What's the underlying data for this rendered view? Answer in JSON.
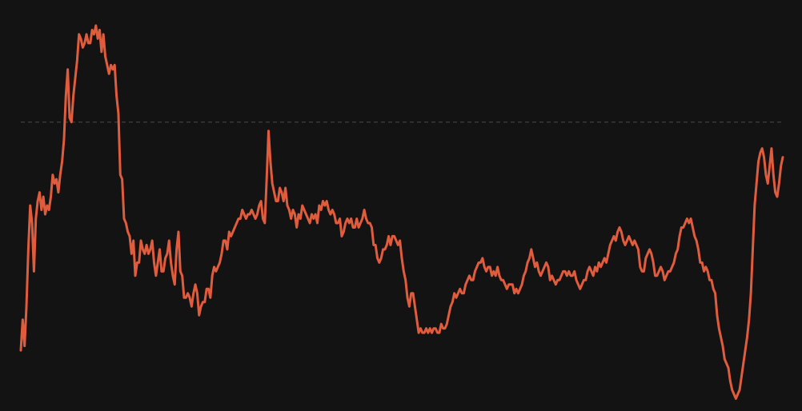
{
  "chart_data": {
    "type": "line",
    "title": "",
    "xlabel": "",
    "ylabel": "",
    "legend": "none",
    "grid": false,
    "colors": {
      "background": "#131313",
      "line": "#e05c3c",
      "reference_line": "#4a4a4a"
    },
    "reference_line": {
      "y": 84
    },
    "ylim": [
      20,
      110
    ],
    "series": [
      {
        "values": [
          32,
          39,
          33,
          42,
          55,
          65,
          61,
          50,
          62,
          66,
          68,
          64,
          67,
          63,
          65,
          64,
          67,
          72,
          70,
          71,
          68,
          72,
          75,
          80,
          90,
          96,
          85,
          84,
          90,
          94,
          98,
          104,
          103,
          101,
          102,
          104,
          102,
          102,
          105,
          104,
          106,
          103,
          105,
          100,
          104,
          99,
          97,
          95,
          97,
          96,
          97,
          90,
          86,
          72,
          71,
          62,
          61,
          59,
          58,
          54,
          57,
          49,
          52,
          52,
          57,
          55,
          54,
          56,
          54,
          55,
          57,
          52,
          49,
          52,
          55,
          50,
          50,
          53,
          54,
          57,
          52,
          49,
          47,
          55,
          59,
          50,
          49,
          44,
          44,
          45,
          44,
          42,
          45,
          47,
          45,
          40,
          42,
          43,
          43,
          46,
          46,
          44,
          49,
          51,
          50,
          51,
          52,
          54,
          57,
          57,
          55,
          59,
          58,
          59,
          60,
          61,
          62,
          62,
          64,
          63,
          62,
          63,
          63,
          64,
          63,
          62,
          63,
          65,
          66,
          62,
          61,
          71,
          82,
          75,
          70,
          68,
          66,
          66,
          69,
          68,
          66,
          69,
          65,
          64,
          62,
          64,
          63,
          60,
          63,
          62,
          65,
          64,
          63,
          62,
          61,
          63,
          62,
          63,
          61,
          65,
          64,
          66,
          65,
          66,
          64,
          63,
          64,
          63,
          61,
          61,
          62,
          58,
          59,
          61,
          62,
          61,
          62,
          60,
          60,
          62,
          60,
          61,
          62,
          64,
          62,
          61,
          61,
          60,
          56,
          56,
          53,
          52,
          53,
          55,
          55,
          56,
          58,
          56,
          58,
          58,
          57,
          56,
          57,
          53,
          50,
          48,
          44,
          42,
          45,
          45,
          42,
          39,
          36,
          37,
          36,
          36,
          37,
          36,
          37,
          36,
          37,
          37,
          36,
          36,
          38,
          37,
          37,
          38,
          40,
          42,
          43,
          45,
          44,
          45,
          46,
          45,
          45,
          47,
          48,
          49,
          48,
          48,
          50,
          51,
          52,
          52,
          53,
          51,
          50,
          51,
          51,
          49,
          50,
          49,
          51,
          49,
          48,
          48,
          47,
          46,
          47,
          47,
          47,
          45,
          46,
          45,
          46,
          47,
          49,
          50,
          52,
          53,
          55,
          53,
          51,
          52,
          50,
          49,
          50,
          51,
          52,
          51,
          48,
          49,
          48,
          47,
          48,
          48,
          49,
          50,
          50,
          49,
          50,
          49,
          49,
          50,
          48,
          47,
          46,
          47,
          48,
          48,
          50,
          51,
          50,
          49,
          51,
          50,
          52,
          51,
          52,
          53,
          52,
          54,
          56,
          57,
          58,
          57,
          59,
          60,
          59,
          57,
          56,
          57,
          58,
          57,
          56,
          57,
          56,
          55,
          51,
          50,
          50,
          53,
          54,
          55,
          54,
          52,
          49,
          49,
          50,
          51,
          50,
          48,
          49,
          50,
          50,
          51,
          52,
          54,
          55,
          58,
          60,
          60,
          61,
          62,
          61,
          62,
          60,
          58,
          57,
          55,
          52,
          52,
          50,
          51,
          50,
          48,
          48,
          46,
          45,
          40,
          37,
          35,
          33,
          30,
          29,
          28,
          25,
          23,
          22,
          21,
          22,
          23,
          26,
          29,
          32,
          35,
          39,
          45,
          55,
          65,
          70,
          75,
          77,
          78,
          76,
          72,
          70,
          74,
          78,
          72,
          68,
          67,
          70,
          74,
          76
        ]
      }
    ]
  }
}
